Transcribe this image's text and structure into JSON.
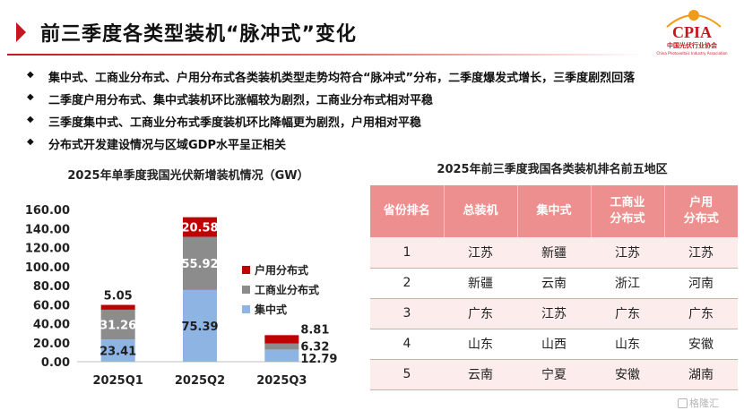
{
  "header": {
    "title": "前三季度各类型装机“脉冲式”变化",
    "logo_text": "CPIA",
    "logo_subtitle": "中国光伏行业协会",
    "logo_subtitle_en": "China Photovoltaic Industry Association"
  },
  "bullets": [
    "集中式、工商业分布式、户用分布式各类装机类型走势均符合“脉冲式”分布，二季度爆发式增长，三季度剧烈回落",
    "二季度户用分布式、集中式装机环比涨幅较为剧烈，工商业分布式相对平稳",
    "三季度集中式、工商业分布式季度装机环比降幅更为剧烈，户用相对平稳",
    "分布式开发建设情况与区域GDP水平呈正相关"
  ],
  "bullet_marker": "◆",
  "chart_data": {
    "type": "bar",
    "stacked": true,
    "title": "2025年单季度我国光伏新增装机情况（GW）",
    "categories": [
      "2025Q1",
      "2025Q2",
      "2025Q3"
    ],
    "series": [
      {
        "name": "集中式",
        "values": [
          23.41,
          75.39,
          12.79
        ],
        "labels": [
          "23.41",
          "75.39",
          "12.79"
        ],
        "color": "#8db4e2"
      },
      {
        "name": "工商业分布式",
        "values": [
          31.26,
          55.92,
          6.32
        ],
        "labels": [
          "31.26",
          "55.92",
          "6.32"
        ],
        "color": "#8c8c8c"
      },
      {
        "name": "户用分布式",
        "values": [
          5.05,
          20.58,
          8.81
        ],
        "labels": [
          "5.05",
          "20.58",
          "8.81"
        ],
        "color": "#c00000"
      }
    ],
    "legend_order": [
      "户用分布式",
      "工商业分布式",
      "集中式"
    ],
    "legend_position": "right",
    "ylim": [
      0,
      160
    ],
    "yticks": [
      "0.00",
      "20.00",
      "40.00",
      "60.00",
      "80.00",
      "100.00",
      "120.00",
      "140.00",
      "160.00"
    ],
    "grid": false
  },
  "table": {
    "title": "2025年前三季度我国各类装机排名前五地区",
    "headers": [
      [
        "省份排名"
      ],
      [
        "总装机"
      ],
      [
        "集中式"
      ],
      [
        "工商业",
        "分布式"
      ],
      [
        "户用",
        "分布式"
      ]
    ],
    "rows": [
      [
        "1",
        "江苏",
        "新疆",
        "江苏",
        "江苏"
      ],
      [
        "2",
        "新疆",
        "云南",
        "浙江",
        "河南"
      ],
      [
        "3",
        "广东",
        "江苏",
        "广东",
        "广东"
      ],
      [
        "4",
        "山东",
        "山西",
        "山东",
        "安徽"
      ],
      [
        "5",
        "云南",
        "宁夏",
        "安徽",
        "湖南"
      ]
    ]
  },
  "watermark": "格隆汇",
  "colors": {
    "accent": "#c8161d",
    "table_header": "#ee8f8f",
    "table_row_alt": "#fcecec"
  }
}
